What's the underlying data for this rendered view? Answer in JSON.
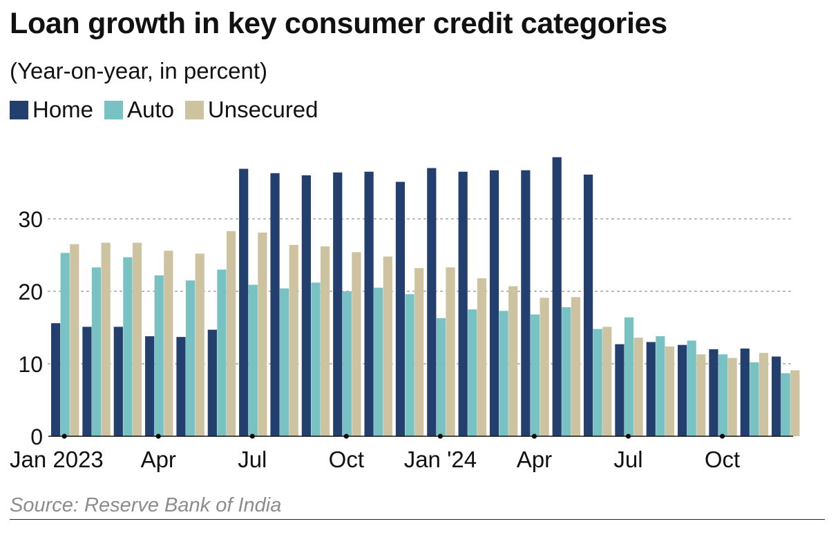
{
  "title": "Loan growth in key consumer credit categories",
  "subtitle": "(Year-on-year, in percent)",
  "source": "Source: Reserve Bank of India",
  "colors": {
    "home": "#233f6e",
    "auto": "#79c2c4",
    "unsecured": "#cdc3a0",
    "grid": "#b3b3b3",
    "axis": "#111111"
  },
  "legend": [
    {
      "label": "Home",
      "color": "#233f6e"
    },
    {
      "label": "Auto",
      "color": "#79c2c4"
    },
    {
      "label": "Unsecured",
      "color": "#cdc3a0"
    }
  ],
  "chart_data": {
    "type": "bar",
    "categories": [
      "Jan 2023",
      "Feb 2023",
      "Mar 2023",
      "Apr 2023",
      "May 2023",
      "Jun 2023",
      "Jul 2023",
      "Aug 2023",
      "Sep 2023",
      "Oct 2023",
      "Nov 2023",
      "Dec 2023",
      "Jan 2024",
      "Feb 2024",
      "Mar 2024",
      "Apr 2024",
      "May 2024",
      "Jun 2024",
      "Jul 2024",
      "Aug 2024",
      "Sep 2024",
      "Oct 2024",
      "Nov 2024",
      "Dec 2024"
    ],
    "series": [
      {
        "name": "Home",
        "color": "#233f6e",
        "values": [
          15.6,
          15.1,
          15.1,
          13.8,
          13.7,
          14.7,
          36.9,
          36.3,
          36.0,
          36.4,
          36.5,
          35.1,
          37.0,
          36.5,
          36.7,
          36.7,
          38.5,
          36.1,
          12.7,
          13.0,
          12.6,
          12.0,
          12.1,
          11.0
        ]
      },
      {
        "name": "Auto",
        "color": "#79c2c4",
        "values": [
          25.3,
          23.3,
          24.7,
          22.2,
          21.5,
          23.0,
          20.9,
          20.4,
          21.2,
          20.0,
          20.5,
          19.6,
          16.3,
          17.5,
          17.3,
          16.8,
          17.8,
          14.8,
          16.4,
          13.8,
          13.2,
          11.3,
          10.2,
          8.7
        ]
      },
      {
        "name": "Unsecured",
        "color": "#cdc3a0",
        "values": [
          26.5,
          26.7,
          26.7,
          25.6,
          25.2,
          28.3,
          28.1,
          26.4,
          26.2,
          25.4,
          24.8,
          23.2,
          23.3,
          21.8,
          20.7,
          19.1,
          19.2,
          15.1,
          13.6,
          12.4,
          11.3,
          10.8,
          11.5,
          9.1
        ]
      }
    ],
    "x_tick_labels": [
      {
        "index": 0,
        "label": "Jan 2023"
      },
      {
        "index": 3,
        "label": "Apr"
      },
      {
        "index": 6,
        "label": "Jul"
      },
      {
        "index": 9,
        "label": "Oct"
      },
      {
        "index": 12,
        "label": "Jan '24"
      },
      {
        "index": 15,
        "label": "Apr"
      },
      {
        "index": 18,
        "label": "Jul"
      },
      {
        "index": 21,
        "label": "Oct"
      }
    ],
    "y_ticks": [
      0,
      10,
      20,
      30
    ],
    "ylim": [
      0,
      40
    ],
    "grid": "horizontal dotted",
    "legend_position": "top-left",
    "title": "Loan growth in key consumer credit categories",
    "subtitle": "(Year-on-year, in percent)",
    "xlabel": "",
    "ylabel": ""
  }
}
